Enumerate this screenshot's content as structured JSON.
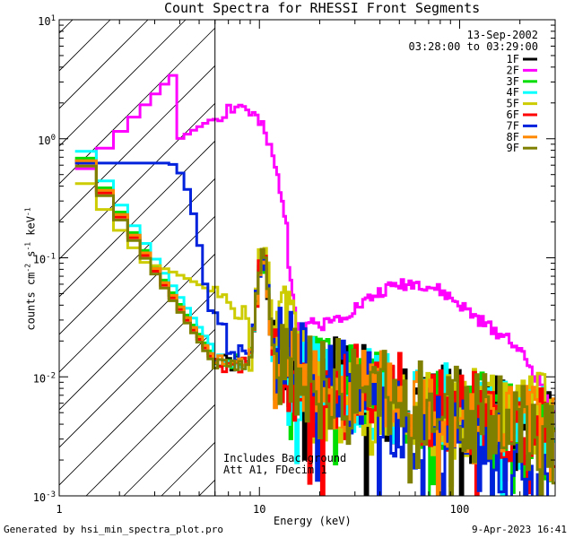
{
  "chart_data": {
    "type": "line",
    "title": "Count Spectra for RHESSI Front Segments",
    "date": "13-Sep-2002",
    "time_range": "03:28:00 to 03:29:00",
    "xlabel": "Energy (keV)",
    "ylabel_parts": {
      "base": "counts cm",
      "sup1": "-2",
      "mid": " s",
      "sup2": "-1",
      "end": " keV",
      "sup3": "-1"
    },
    "x_scale": "log",
    "y_scale": "log",
    "xlim": [
      1,
      300
    ],
    "ylim": [
      0.001,
      10
    ],
    "x_ticks": [
      {
        "v": 1,
        "label": "1"
      },
      {
        "v": 10,
        "label": "10"
      },
      {
        "v": 100,
        "label": "100"
      }
    ],
    "y_ticks": [
      {
        "v": 0.001,
        "base": "10",
        "exp": "-3"
      },
      {
        "v": 0.01,
        "base": "10",
        "exp": "-2"
      },
      {
        "v": 0.1,
        "base": "10",
        "exp": "-1"
      },
      {
        "v": 1,
        "base": "10",
        "exp": "0"
      },
      {
        "v": 10,
        "base": "10",
        "exp": "1"
      }
    ],
    "hatched_below_keV": 6,
    "annotations": [
      "Includes Background",
      "Att A1, FDecim 1"
    ],
    "legend_position": "top-right",
    "series": [
      {
        "name": "1F",
        "color": "#000000",
        "style": "segment",
        "ampl": 1.0,
        "seed": 1
      },
      {
        "name": "2F",
        "color": "#ff00ff",
        "style": "shoulder",
        "ampl": 0,
        "seed": 2
      },
      {
        "name": "3F",
        "color": "#00dd00",
        "style": "segment",
        "ampl": 1.05,
        "seed": 3
      },
      {
        "name": "4F",
        "color": "#00ffff",
        "style": "segment",
        "ampl": 1.2,
        "seed": 4
      },
      {
        "name": "5F",
        "color": "#cccc00",
        "style": "attenuated",
        "ampl": 1.1,
        "seed": 5
      },
      {
        "name": "6F",
        "color": "#ff0000",
        "style": "segment",
        "ampl": 0.95,
        "seed": 6
      },
      {
        "name": "7F",
        "color": "#0022dd",
        "style": "thin",
        "ampl": 0.8,
        "seed": 7
      },
      {
        "name": "8F",
        "color": "#ff8800",
        "style": "segment",
        "ampl": 1.0,
        "seed": 8
      },
      {
        "name": "9F",
        "color": "#808000",
        "style": "segment",
        "ampl": 0.9,
        "seed": 9
      }
    ]
  },
  "footer": {
    "left": "Generated by hsi_min_spectra_plot.pro",
    "right": "9-Apr-2023 16:41"
  }
}
